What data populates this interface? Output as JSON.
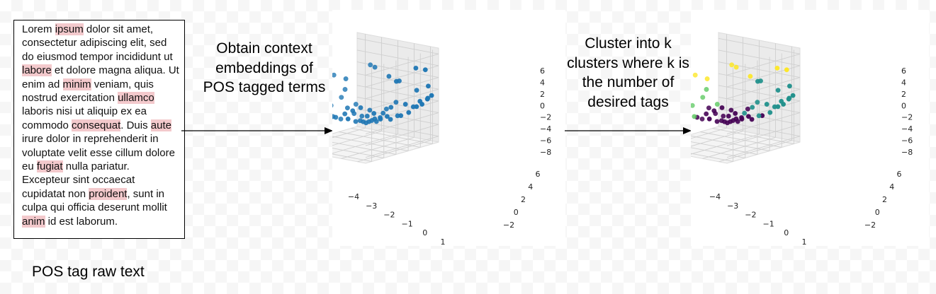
{
  "raw_text": {
    "segments": [
      {
        "t": "Lorem ",
        "h": false
      },
      {
        "t": "ipsum",
        "h": true
      },
      {
        "t": " dolor sit amet, consectetur adipiscing elit, sed do eiusmod tempor incididunt ut ",
        "h": false
      },
      {
        "t": "labore",
        "h": true
      },
      {
        "t": " et dolore magna aliqua. Ut enim ad ",
        "h": false
      },
      {
        "t": "minim",
        "h": true
      },
      {
        "t": " veniam, quis nostrud exercitation ",
        "h": false
      },
      {
        "t": "ullamco",
        "h": true
      },
      {
        "t": " laboris nisi ut aliquip ex ea commodo ",
        "h": false
      },
      {
        "t": "consequat",
        "h": true
      },
      {
        "t": ". Duis ",
        "h": false
      },
      {
        "t": "aute",
        "h": true
      },
      {
        "t": " irure dolor in reprehenderit in voluptate velit esse cillum dolore eu ",
        "h": false
      },
      {
        "t": "fugiat",
        "h": true
      },
      {
        "t": " nulla pariatur. Excepteur sint occaecat cupidatat non ",
        "h": false
      },
      {
        "t": "proident",
        "h": true
      },
      {
        "t": ", sunt in culpa qui officia deserunt mollit ",
        "h": false
      },
      {
        "t": "anim",
        "h": true
      },
      {
        "t": " id est laborum.",
        "h": false
      }
    ],
    "highlight_color": "#f3c9cc"
  },
  "caption": "POS tag raw text",
  "steps": {
    "embed": "Obtain context embeddings of POS tagged terms",
    "cluster": "Cluster into k clusters where k is the number of desired tags"
  },
  "colors": {
    "points": "#1f77b4",
    "clusters": [
      "#440154",
      "#21918c",
      "#5ec962",
      "#fde725",
      "#3b528b"
    ]
  },
  "chart_data": [
    {
      "type": "scatter",
      "title": "",
      "projection": "3d",
      "x_ticks": [
        "−4",
        "−3",
        "−2",
        "−1",
        "0",
        "1"
      ],
      "y_ticks": [
        "−2",
        "0",
        "2",
        "4",
        "6"
      ],
      "z_ticks": [
        "6",
        "4",
        "2",
        "0",
        "−2",
        "−4",
        "−6",
        "−8"
      ],
      "xlim": [
        -4.7,
        1.2
      ],
      "ylim": [
        -2.6,
        7.2
      ],
      "zlim": [
        -9.4,
        7.4
      ],
      "points": [
        [
          -4.4,
          0.0,
          -3.0
        ],
        [
          -4.2,
          0.4,
          -1.5
        ],
        [
          -3.5,
          1.6,
          4.0
        ],
        [
          -3.2,
          2.5,
          1.5
        ],
        [
          -2.8,
          2.0,
          3.0
        ],
        [
          -2.5,
          4.5,
          6.0
        ],
        [
          -1.8,
          4.0,
          5.0
        ],
        [
          -1.0,
          4.5,
          3.0
        ],
        [
          -0.5,
          5.0,
          2.0
        ],
        [
          -0.2,
          4.2,
          1.5
        ],
        [
          0.3,
          5.8,
          4.0
        ],
        [
          0.8,
          6.2,
          3.5
        ],
        [
          -3.0,
          -1.0,
          -4.0
        ],
        [
          -2.8,
          -0.5,
          -3.5
        ],
        [
          -2.5,
          0.0,
          -4.5
        ],
        [
          -2.2,
          0.5,
          -5.0
        ],
        [
          -2.0,
          1.0,
          -3.0
        ],
        [
          -1.8,
          1.5,
          -4.0
        ],
        [
          -1.5,
          2.0,
          -4.5
        ],
        [
          -1.2,
          2.5,
          -3.5
        ],
        [
          -1.0,
          3.0,
          -5.5
        ],
        [
          -0.8,
          3.5,
          -4.0
        ],
        [
          -0.5,
          4.0,
          -3.0
        ],
        [
          -0.3,
          4.5,
          -4.5
        ],
        [
          0.0,
          5.0,
          -2.5
        ],
        [
          0.3,
          5.5,
          -3.0
        ],
        [
          0.5,
          6.0,
          -2.0
        ],
        [
          0.8,
          6.5,
          -1.5
        ],
        [
          -1.6,
          -1.0,
          -5.5
        ],
        [
          -1.2,
          -0.5,
          -5.0
        ],
        [
          -0.9,
          0.0,
          -4.5
        ],
        [
          -0.6,
          0.5,
          -4.0
        ],
        [
          -0.4,
          1.0,
          -5.5
        ],
        [
          -0.2,
          1.5,
          -5.0
        ],
        [
          0.0,
          2.0,
          -6.0
        ],
        [
          0.2,
          2.5,
          -5.5
        ],
        [
          -3.8,
          -1.5,
          -7.5
        ],
        [
          -3.4,
          -1.8,
          -6.5
        ],
        [
          -2.9,
          -2.2,
          -7.0
        ],
        [
          -2.6,
          -1.6,
          -8.0
        ],
        [
          -2.2,
          -2.0,
          -6.0
        ],
        [
          -1.9,
          -2.4,
          -8.5
        ],
        [
          0.4,
          -2.5,
          -7.5
        ],
        [
          -4.5,
          1.5,
          -2.0
        ],
        [
          -4.0,
          2.0,
          -1.0
        ],
        [
          -3.7,
          2.8,
          0.5
        ],
        [
          -3.0,
          3.5,
          -1.0
        ],
        [
          -0.7,
          3.0,
          -5.0
        ],
        [
          -0.2,
          3.5,
          -5.5
        ],
        [
          0.3,
          4.0,
          -5.0
        ],
        [
          0.6,
          4.5,
          -4.5
        ],
        [
          0.9,
          5.0,
          -3.5
        ],
        [
          1.0,
          5.5,
          -3.0
        ],
        [
          1.1,
          6.0,
          -2.0
        ],
        [
          0.9,
          6.8,
          -1.0
        ],
        [
          -1.4,
          4.8,
          -2.5
        ],
        [
          -0.9,
          5.2,
          -1.5
        ],
        [
          -0.1,
          6.5,
          0.5
        ],
        [
          0.5,
          7.0,
          1.0
        ],
        [
          -1.1,
          1.2,
          -5.8
        ],
        [
          -1.0,
          1.4,
          -6.0
        ],
        [
          -0.9,
          1.6,
          -6.2
        ],
        [
          -0.8,
          1.8,
          -6.0
        ],
        [
          -0.7,
          2.0,
          -5.8
        ],
        [
          -1.2,
          0.8,
          -6.0
        ],
        [
          -0.6,
          2.2,
          -5.5
        ]
      ],
      "coloring": "single"
    },
    {
      "type": "scatter",
      "title": "",
      "projection": "3d",
      "x_ticks": [
        "−4",
        "−3",
        "−2",
        "−1",
        "0",
        "1"
      ],
      "y_ticks": [
        "−2",
        "0",
        "2",
        "4",
        "6"
      ],
      "z_ticks": [
        "6",
        "4",
        "2",
        "0",
        "−2",
        "−4",
        "−6",
        "−8"
      ],
      "xlim": [
        -4.7,
        1.2
      ],
      "ylim": [
        -2.6,
        7.2
      ],
      "zlim": [
        -9.4,
        7.4
      ],
      "coloring": "clusters",
      "cluster_count": 5
    }
  ]
}
